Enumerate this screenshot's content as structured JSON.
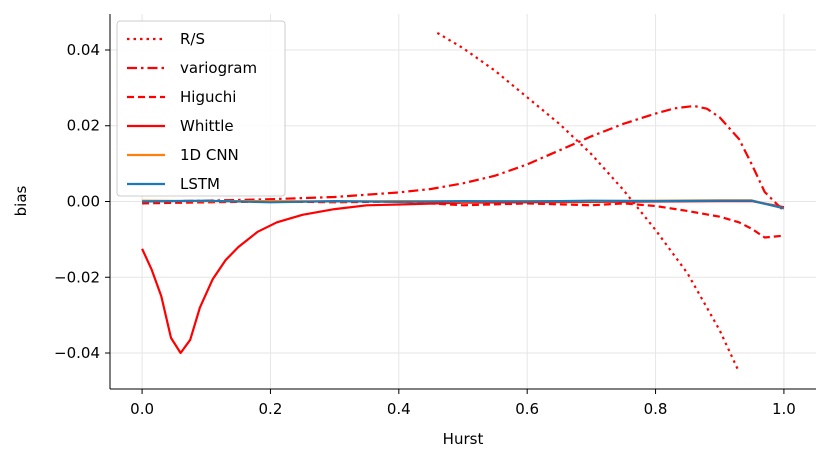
{
  "chart_data": {
    "type": "line",
    "xlabel": "Hurst",
    "ylabel": "bias",
    "xlim": [
      -0.05,
      1.05
    ],
    "ylim": [
      -0.0495,
      0.0495
    ],
    "xticks": [
      0.0,
      0.2,
      0.4,
      0.6,
      0.8,
      1.0
    ],
    "xtick_labels": [
      "0.0",
      "0.2",
      "0.4",
      "0.6",
      "0.8",
      "1.0"
    ],
    "yticks": [
      -0.04,
      -0.02,
      0.0,
      0.02,
      0.04
    ],
    "ytick_labels": [
      "−0.04",
      "−0.02",
      "0.00",
      "0.02",
      "0.04"
    ],
    "grid": true,
    "legend_position": "top-left",
    "series": [
      {
        "name": "R/S",
        "color": "#ff0000",
        "style": "dotted",
        "x": [
          0.46,
          0.5,
          0.55,
          0.6,
          0.65,
          0.7,
          0.75,
          0.8,
          0.85,
          0.9,
          0.93
        ],
        "y": [
          0.0445,
          0.0405,
          0.0345,
          0.0275,
          0.0205,
          0.0125,
          0.003,
          -0.0075,
          -0.019,
          -0.034,
          -0.045
        ]
      },
      {
        "name": "variogram",
        "color": "#ff0000",
        "style": "dashdot",
        "x": [
          0.0,
          0.1,
          0.2,
          0.3,
          0.4,
          0.45,
          0.5,
          0.55,
          0.6,
          0.65,
          0.7,
          0.75,
          0.8,
          0.83,
          0.86,
          0.88,
          0.9,
          0.93,
          0.95,
          0.97,
          1.0
        ],
        "y": [
          0.0,
          0.0002,
          0.0006,
          0.0012,
          0.0024,
          0.0033,
          0.0048,
          0.0068,
          0.0098,
          0.0135,
          0.0172,
          0.0205,
          0.0232,
          0.0246,
          0.0252,
          0.0245,
          0.0222,
          0.0165,
          0.0098,
          0.0025,
          -0.0025
        ]
      },
      {
        "name": "Higuchi",
        "color": "#ff0000",
        "style": "dashed",
        "x": [
          0.0,
          0.1,
          0.2,
          0.3,
          0.4,
          0.5,
          0.6,
          0.7,
          0.75,
          0.8,
          0.85,
          0.9,
          0.93,
          0.95,
          0.97,
          1.0
        ],
        "y": [
          -0.0005,
          -0.0002,
          0.0,
          -0.0002,
          0.0,
          -0.001,
          -0.0005,
          -0.001,
          -0.0005,
          -0.0012,
          -0.0025,
          -0.004,
          -0.0055,
          -0.0072,
          -0.0095,
          -0.009
        ]
      },
      {
        "name": "Whittle",
        "color": "#ff0000",
        "style": "solid",
        "x": [
          0.0,
          0.015,
          0.03,
          0.045,
          0.06,
          0.075,
          0.09,
          0.11,
          0.13,
          0.15,
          0.18,
          0.21,
          0.25,
          0.3,
          0.35,
          0.4,
          0.5,
          0.6,
          0.7,
          0.8,
          0.9,
          0.95,
          1.0
        ],
        "y": [
          -0.0125,
          -0.018,
          -0.025,
          -0.036,
          -0.04,
          -0.0365,
          -0.028,
          -0.0205,
          -0.0155,
          -0.012,
          -0.008,
          -0.0055,
          -0.0035,
          -0.002,
          -0.001,
          -0.0008,
          -0.0003,
          -0.0002,
          -0.0001,
          0.0,
          0.0001,
          0.0001,
          -0.0015
        ]
      },
      {
        "name": "1D CNN",
        "color": "#ff7f0e",
        "style": "solid",
        "x": [
          0.0,
          0.1,
          0.2,
          0.3,
          0.4,
          0.5,
          0.6,
          0.7,
          0.8,
          0.9,
          0.95,
          1.0
        ],
        "y": [
          0.0002,
          0.0001,
          0.0001,
          0.0,
          0.0001,
          0.0,
          0.0001,
          0.0001,
          0.0002,
          0.0003,
          0.0003,
          -0.0018
        ]
      },
      {
        "name": "LSTM",
        "color": "#1f77b4",
        "style": "solid",
        "x": [
          0.0,
          0.1,
          0.2,
          0.3,
          0.4,
          0.5,
          0.6,
          0.7,
          0.8,
          0.9,
          0.95,
          1.0
        ],
        "y": [
          0.0,
          0.0002,
          -0.0002,
          0.0001,
          -0.0001,
          0.0001,
          0.0,
          0.0002,
          0.0001,
          0.0002,
          0.0002,
          -0.0018
        ]
      }
    ]
  }
}
